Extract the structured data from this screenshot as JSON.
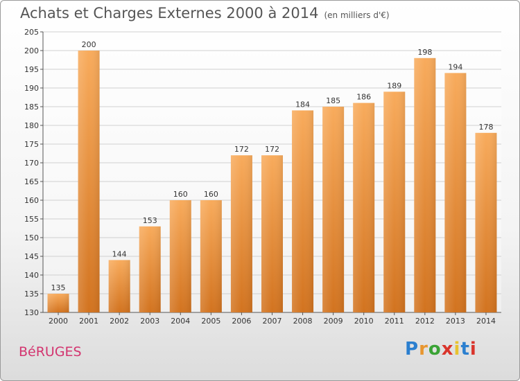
{
  "title": "Achats et Charges Externes 2000 à 2014",
  "unit": "(en milliers d'€)",
  "commune": "BéRUGES",
  "brand": {
    "text": "Proxiti",
    "colors": [
      "#2b7fcf",
      "#e8962f",
      "#3aa335",
      "#d9342b",
      "#e8c22f",
      "#2b7fcf",
      "#d9342b"
    ]
  },
  "colors": {
    "bar_light": "#f8ab5c",
    "bar_dark": "#d2731f",
    "grid": "#d0d0d0",
    "commune": "#d3346f"
  },
  "chart_data": {
    "type": "bar",
    "categories": [
      "2000",
      "2001",
      "2002",
      "2003",
      "2004",
      "2005",
      "2006",
      "2007",
      "2008",
      "2009",
      "2010",
      "2011",
      "2012",
      "2013",
      "2014"
    ],
    "values": [
      135,
      200,
      144,
      153,
      160,
      160,
      172,
      172,
      184,
      185,
      186,
      189,
      198,
      194,
      178
    ],
    "ylim": [
      130,
      205
    ],
    "yticks": [
      130,
      135,
      140,
      145,
      150,
      155,
      160,
      165,
      170,
      175,
      180,
      185,
      190,
      195,
      200,
      205
    ],
    "grid": true,
    "xlabel": "",
    "ylabel": ""
  }
}
